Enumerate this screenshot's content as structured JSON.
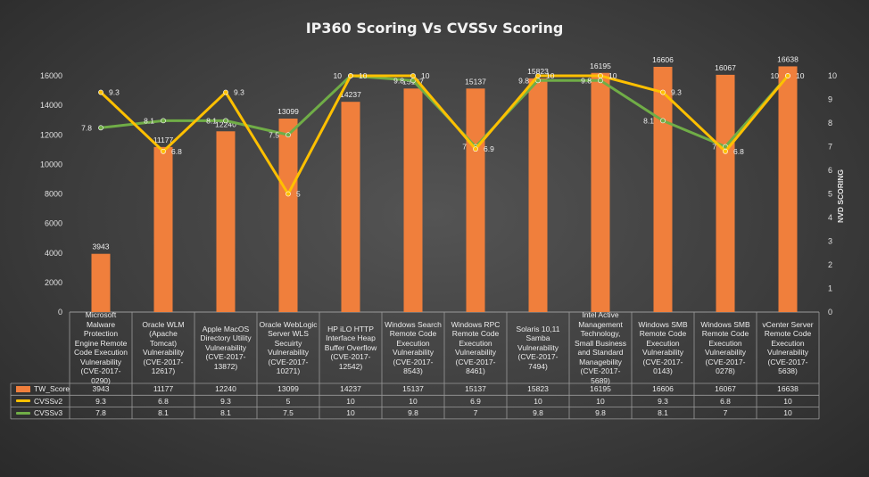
{
  "chart_data": {
    "type": "bar+line",
    "title": "IP360 Scoring Vs CVSSv Scoring",
    "categories": [
      "Microsoft Malware Protection Engine Remote Code Execution Vulnerability (CVE-2017-0290)",
      "Oracle WLM (Apache Tomcat) Vulnerability (CVE-2017-12617)",
      "Apple MacOS Directory Utility Vulnerability (CVE-2017-13872)",
      "Oracle WebLogic Server WLS Secuirty Vulnerability (CVE-2017-10271)",
      "HP iLO HTTP Interface Heap Buffer Overflow (CVE-2017-12542)",
      "Windows Search Remote Code Execution Vulnerability (CVE-2017-8543)",
      "Windows RPC Remote Code Execution Vulnerability (CVE-2017-8461)",
      "Solaris 10,11 Samba Vulnerability (CVE-2017-7494)",
      "Intel Active Management Technology, Small Business and Standard Managebility (CVE-2017-5689)",
      "Windows SMB Remote Code Execution Vulnerability (CVE-2017-0143)",
      "Windows SMB Remote Code Execution Vulnerability (CVE-2017-0278)",
      "vCenter Server Remote Code Execution Vulnerability (CVE-2017-5638)"
    ],
    "category_lines": [
      "Microsoft\nMalware\nProtection\nEngine Remote\nCode Execution\nVulnerability\n(CVE-2017-0290)",
      "Oracle WLM\n(Apache\nTomcat)\nVulnerability\n(CVE-2017-\n12617)",
      "Apple MacOS\nDirectory Utility\nVulnerability\n(CVE-2017-\n13872)",
      "Oracle WebLogic\nServer WLS\nSecuirty\nVulnerability\n(CVE-2017-\n10271)",
      "HP iLO HTTP\nInterface Heap\nBuffer Overflow\n(CVE-2017-\n12542)",
      "Windows Search\nRemote Code\nExecution\nVulnerability\n(CVE-2017-8543)",
      "Windows RPC\nRemote Code\nExecution\nVulnerability\n(CVE-2017-8461)",
      "Solaris 10,11\nSamba\nVulnerability\n(CVE-2017-7494)",
      "Intel Active\nManagement\nTechnology,\nSmall Business\nand Standard\nManagebility\n(CVE-2017-5689)",
      "Windows SMB\nRemote Code\nExecution\nVulnerability\n(CVE-2017-0143)",
      "Windows SMB\nRemote Code\nExecution\nVulnerability\n(CVE-2017-0278)",
      "vCenter Server\nRemote Code\nExecution\nVulnerability\n(CVE-2017-5638)"
    ],
    "series": [
      {
        "name": "TW_Score",
        "type": "bar",
        "axis": "left",
        "color": "#f07f3c",
        "values": [
          3943,
          11177,
          12240,
          13099,
          14237,
          15137,
          15137,
          15823,
          16195,
          16606,
          16067,
          16638
        ]
      },
      {
        "name": "CVSSv2",
        "type": "line",
        "axis": "right",
        "color": "#ffc000",
        "values": [
          9.3,
          6.8,
          9.3,
          5,
          10,
          10,
          6.9,
          10,
          10,
          9.3,
          6.8,
          10
        ]
      },
      {
        "name": "CVSSv3",
        "type": "line",
        "axis": "right",
        "color": "#70ad47",
        "values": [
          7.8,
          8.1,
          8.1,
          7.5,
          10,
          9.8,
          7,
          9.8,
          9.8,
          8.1,
          7,
          10
        ]
      }
    ],
    "y_left": {
      "min": 0,
      "max": 16000,
      "step": 2000,
      "label": ""
    },
    "y_right": {
      "min": 0,
      "max": 10,
      "step": 1,
      "label": "NVD SCORING"
    },
    "data_table": true,
    "gridlines": false
  }
}
